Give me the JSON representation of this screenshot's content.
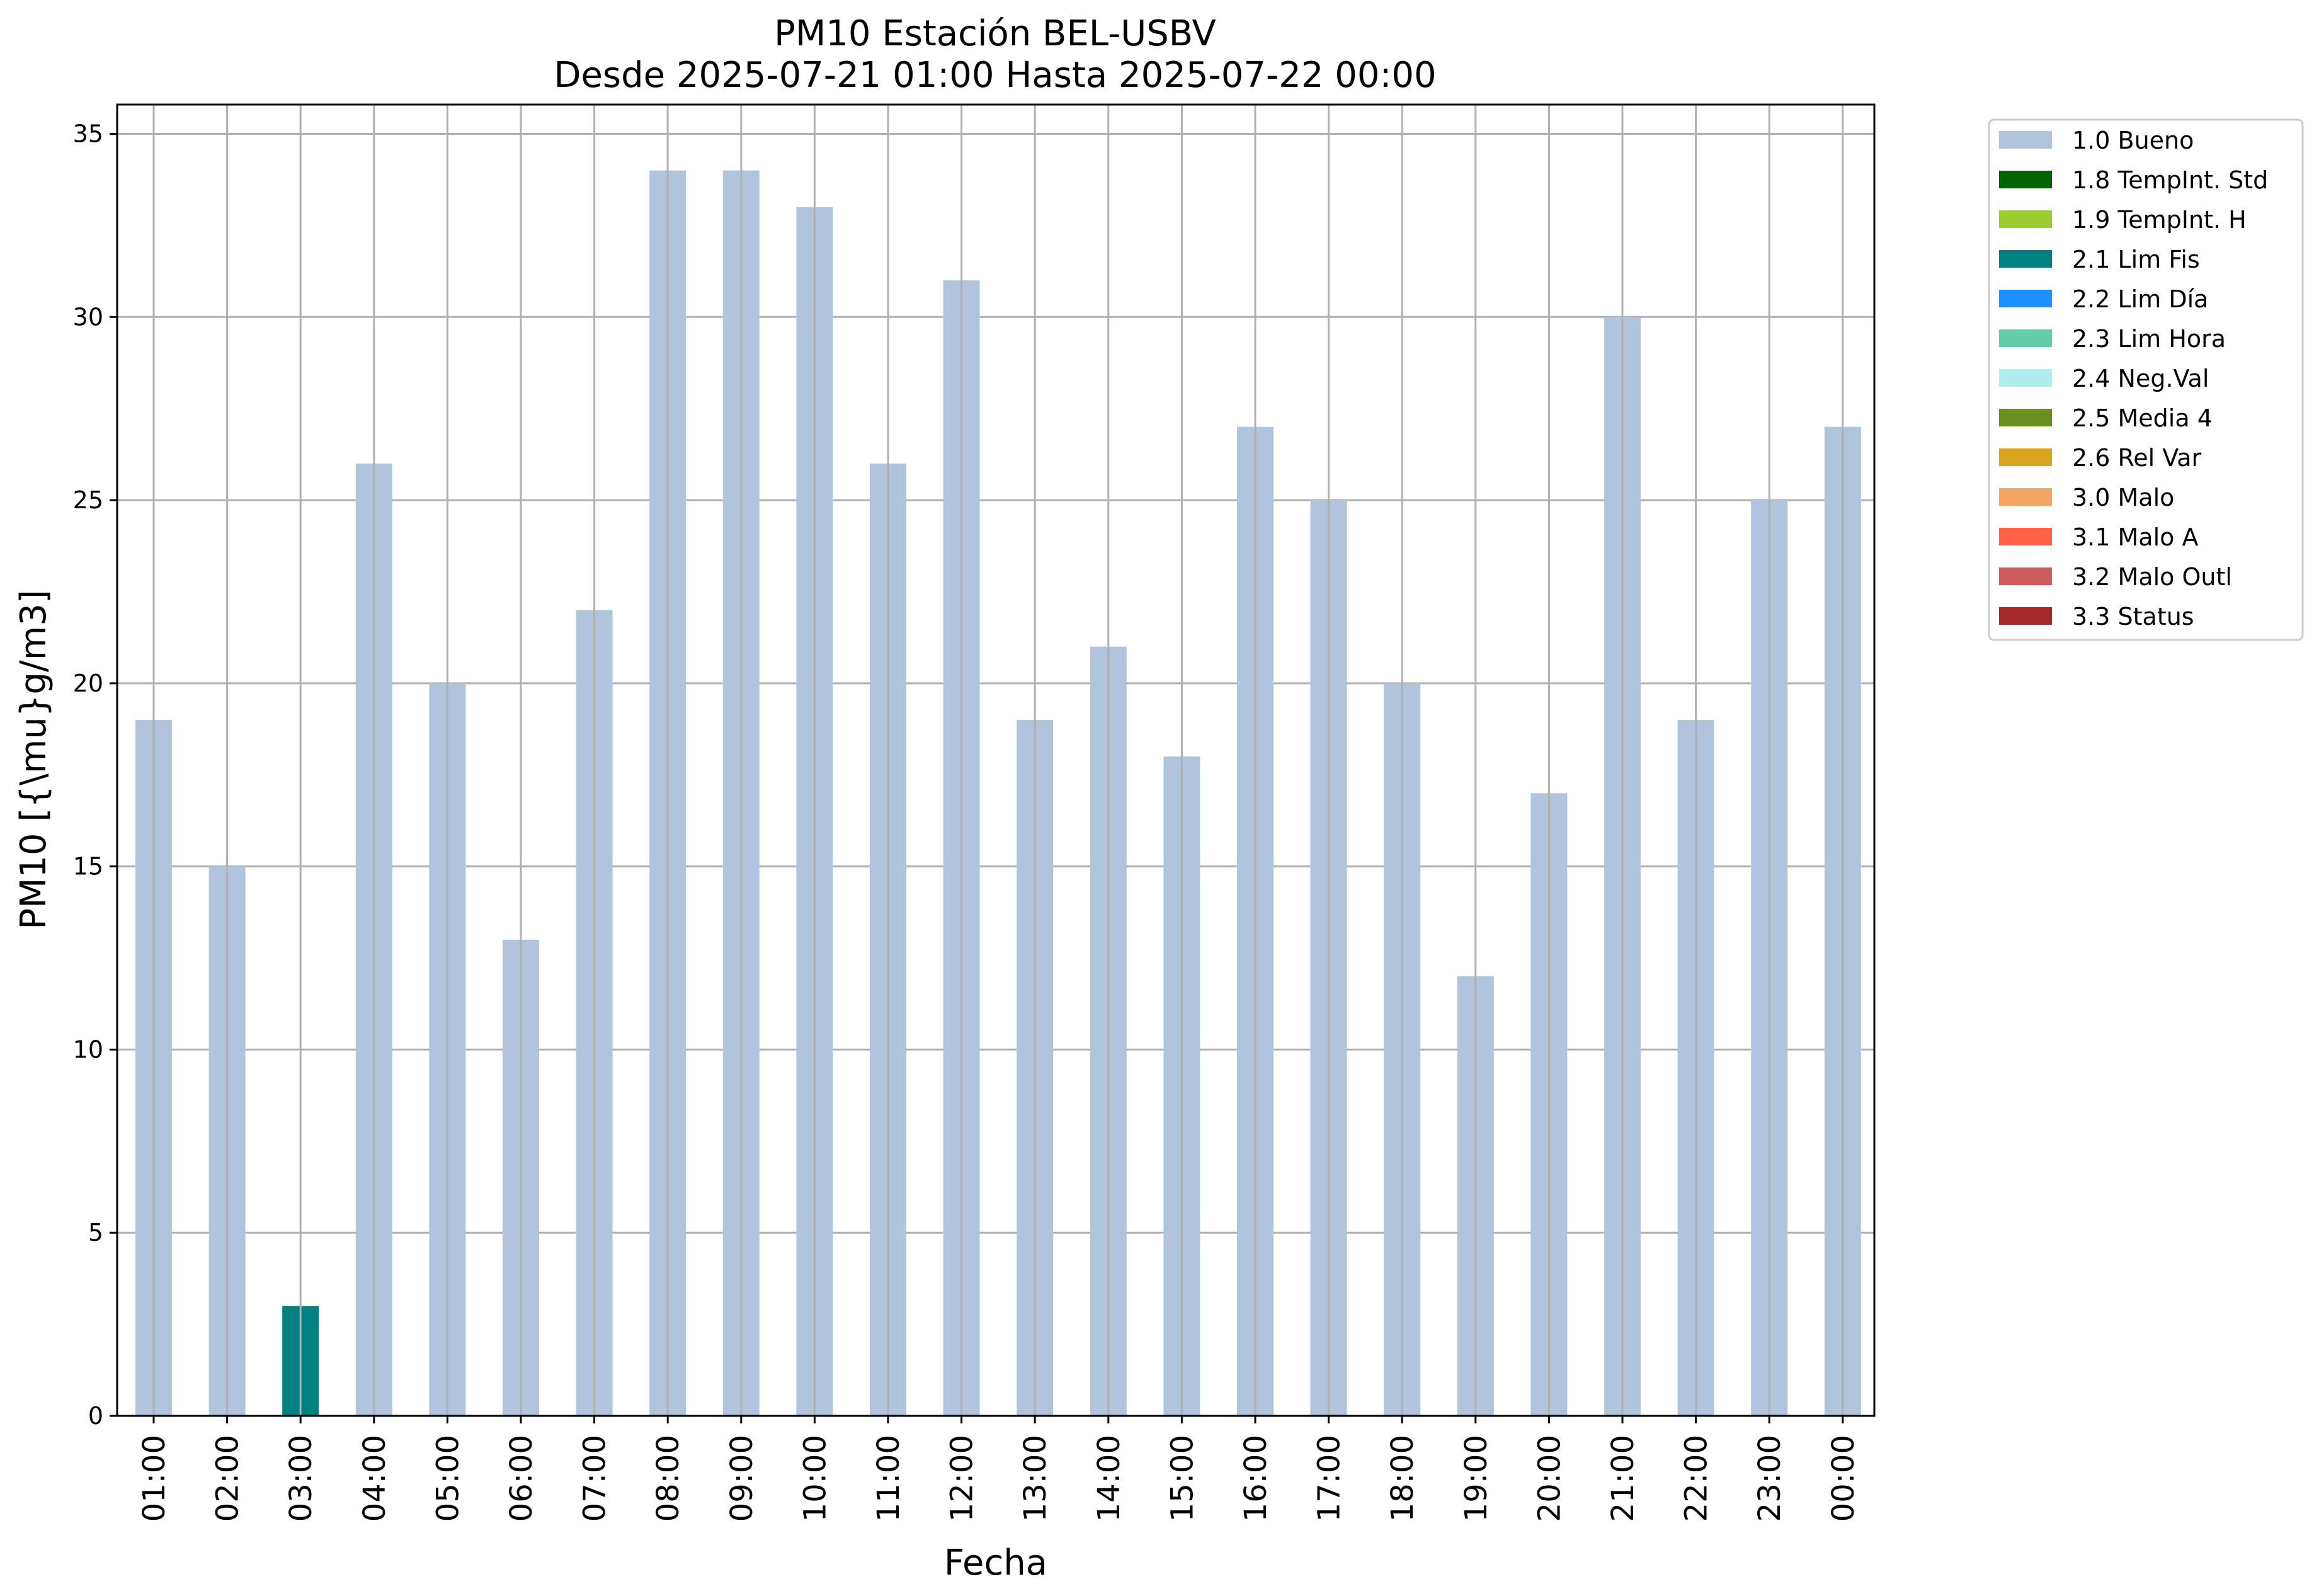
{
  "chart_data": {
    "type": "bar",
    "title": "PM10 Estación BEL-USBV",
    "subtitle": "Desde 2025-07-21 01:00 Hasta 2025-07-22 00:00",
    "xlabel": "Fecha",
    "ylabel": "PM10 [{\\mu}g/m3]",
    "ylim": [
      0,
      35.8
    ],
    "yticks": [
      0,
      5,
      10,
      15,
      20,
      25,
      30,
      35
    ],
    "grid": true,
    "legend_placement": "outside-top-right",
    "categories": [
      "01:00",
      "02:00",
      "03:00",
      "04:00",
      "05:00",
      "06:00",
      "07:00",
      "08:00",
      "09:00",
      "10:00",
      "11:00",
      "12:00",
      "13:00",
      "14:00",
      "15:00",
      "16:00",
      "17:00",
      "18:00",
      "19:00",
      "20:00",
      "21:00",
      "22:00",
      "23:00",
      "00:00"
    ],
    "values": [
      19,
      15,
      3,
      26,
      20,
      13,
      22,
      34,
      34,
      33,
      26,
      31,
      19,
      21,
      18,
      27,
      25,
      20,
      12,
      17,
      30,
      19,
      25,
      27
    ],
    "flags": [
      "1.0 Bueno",
      "1.0 Bueno",
      "2.1 Lim Fis",
      "1.0 Bueno",
      "1.0 Bueno",
      "1.0 Bueno",
      "1.0 Bueno",
      "1.0 Bueno",
      "1.0 Bueno",
      "1.0 Bueno",
      "1.0 Bueno",
      "1.0 Bueno",
      "1.0 Bueno",
      "1.0 Bueno",
      "1.0 Bueno",
      "1.0 Bueno",
      "1.0 Bueno",
      "1.0 Bueno",
      "1.0 Bueno",
      "1.0 Bueno",
      "1.0 Bueno",
      "1.0 Bueno",
      "1.0 Bueno",
      "1.0 Bueno"
    ],
    "legend": [
      {
        "label": "1.0 Bueno",
        "color": "#b0c4de"
      },
      {
        "label": "1.8 TempInt. Std",
        "color": "#006400"
      },
      {
        "label": "1.9 TempInt. H",
        "color": "#9acd32"
      },
      {
        "label": "2.1 Lim Fis",
        "color": "#008080"
      },
      {
        "label": "2.2 Lim Día",
        "color": "#1e90ff"
      },
      {
        "label": "2.3 Lim Hora",
        "color": "#66cdaa"
      },
      {
        "label": "2.4 Neg.Val",
        "color": "#afeeee"
      },
      {
        "label": "2.5 Media 4",
        "color": "#6b8e23"
      },
      {
        "label": "2.6 Rel Var",
        "color": "#daa520"
      },
      {
        "label": "3.0 Malo",
        "color": "#f4a460"
      },
      {
        "label": "3.1 Malo A",
        "color": "#ff6347"
      },
      {
        "label": "3.2 Malo Outl",
        "color": "#cd5c5c"
      },
      {
        "label": "3.3 Status",
        "color": "#a52a2a"
      }
    ]
  }
}
